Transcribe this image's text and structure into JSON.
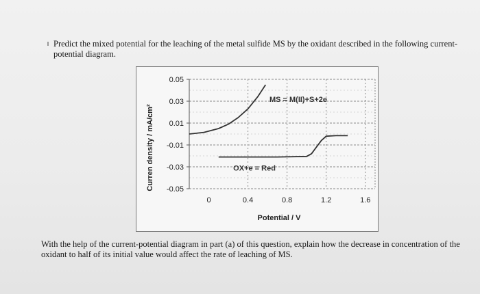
{
  "question_intro": "Predict the mixed potential for the leaching of the metal sulfide MS by the oxidant described in the following current-potential diagram.",
  "question_followup": "With the help of the current-potential diagram in part (a) of this question, explain how the decrease in concentration of the oxidant to half of its initial value would affect the rate of leaching of MS.",
  "chart_data": {
    "type": "line",
    "xlabel": "Potential / V",
    "ylabel": "Curren density / mA/cm²",
    "xlim": [
      -0.2,
      1.7
    ],
    "ylim": [
      -0.05,
      0.05
    ],
    "x_ticks": [
      "0",
      "0.4",
      "0.8",
      "1.2",
      "1.6"
    ],
    "x_tick_values": [
      0,
      0.4,
      0.8,
      1.2,
      1.6
    ],
    "y_ticks": [
      "0.05",
      "0.03",
      "0.01",
      "-0.01",
      "-0.03",
      "-0.05"
    ],
    "y_tick_values": [
      0.05,
      0.03,
      0.01,
      -0.01,
      -0.03,
      -0.05
    ],
    "grid": true,
    "series": [
      {
        "name": "MS = M(II)+S+2e",
        "color": "#333333",
        "x": [
          -0.2,
          -0.05,
          0.1,
          0.2,
          0.3,
          0.4,
          0.5,
          0.58
        ],
        "y": [
          0.0,
          0.0015,
          0.005,
          0.009,
          0.015,
          0.023,
          0.034,
          0.045
        ]
      },
      {
        "name": "OX+e = Red",
        "color": "#333333",
        "x": [
          0.1,
          0.4,
          0.7,
          1.0,
          1.05,
          1.1,
          1.15,
          1.2,
          1.3,
          1.42
        ],
        "y": [
          -0.021,
          -0.021,
          -0.021,
          -0.0205,
          -0.018,
          -0.012,
          -0.006,
          -0.002,
          -0.0015,
          -0.0015
        ]
      }
    ],
    "annotations": [
      {
        "text": "MS = M(II)+S+2e",
        "x": 0.62,
        "y": 0.032
      },
      {
        "text": "OX+e = Red",
        "x": 0.25,
        "y": -0.031
      }
    ]
  },
  "colors": {
    "line": "#333333",
    "grid": "#8a8a8a"
  }
}
